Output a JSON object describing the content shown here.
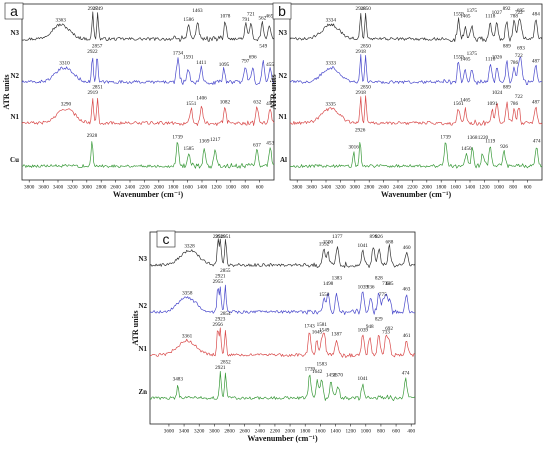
{
  "chart_data": [
    {
      "type": "line",
      "panel": "a",
      "xlabel": "Wavenumber (cm⁻¹)",
      "ylabel": "ATR units",
      "xlim": [
        3900,
        400
      ],
      "x_ticks": [
        "3800",
        "3600",
        "3400",
        "3200",
        "3000",
        "2800",
        "2600",
        "2400",
        "2200",
        "2000",
        "1800",
        "1600",
        "1400",
        "1200",
        "1000",
        "800",
        "600"
      ],
      "series": [
        {
          "name": "N3",
          "color": "#333333",
          "peaks": [
            {
              "x": 3363,
              "label": "3363"
            },
            {
              "x": 2917,
              "label": "2917"
            },
            {
              "x": 2849,
              "label": "2849"
            },
            {
              "x": 1586,
              "label": "1586"
            },
            {
              "x": 1463,
              "label": "1463"
            },
            {
              "x": 1078,
              "label": "1078"
            },
            {
              "x": 791,
              "label": "791"
            },
            {
              "x": 721,
              "label": "721"
            },
            {
              "x": 562,
              "label": "562"
            },
            {
              "x": 465,
              "label": "465"
            }
          ]
        },
        {
          "name": "N2",
          "color": "#4a4acc",
          "peaks": [
            {
              "x": 3310,
              "label": "3310"
            },
            {
              "x": 2922,
              "label": "2922"
            },
            {
              "x": 2857,
              "label": "2857"
            },
            {
              "x": 1734,
              "label": "1734"
            },
            {
              "x": 1591,
              "label": "1591"
            },
            {
              "x": 1411,
              "label": "1411"
            },
            {
              "x": 1095,
              "label": "1095"
            },
            {
              "x": 797,
              "label": "797"
            },
            {
              "x": 696,
              "label": "696"
            },
            {
              "x": 549,
              "label": "549"
            },
            {
              "x": 455,
              "label": "455"
            }
          ]
        },
        {
          "name": "N1",
          "color": "#d94a4a",
          "peaks": [
            {
              "x": 3290,
              "label": "3290"
            },
            {
              "x": 2919,
              "label": "2919"
            },
            {
              "x": 2851,
              "label": "2851"
            },
            {
              "x": 1551,
              "label": "1551"
            },
            {
              "x": 1406,
              "label": "1406"
            },
            {
              "x": 1082,
              "label": "1082"
            },
            {
              "x": 632,
              "label": "632"
            },
            {
              "x": 456,
              "label": "456"
            }
          ]
        },
        {
          "name": "Cu",
          "color": "#3a9a3a",
          "peaks": [
            {
              "x": 2928,
              "label": "2928"
            },
            {
              "x": 1739,
              "label": "1739"
            },
            {
              "x": 1585,
              "label": "1585"
            },
            {
              "x": 1369,
              "label": "1369"
            },
            {
              "x": 1217,
              "label": "1217"
            },
            {
              "x": 637,
              "label": "637"
            },
            {
              "x": 453,
              "label": "453"
            }
          ]
        }
      ]
    },
    {
      "type": "line",
      "panel": "b",
      "xlabel": "Wavenumber (cm⁻¹)",
      "ylabel": "ATR units",
      "xlim": [
        3900,
        400
      ],
      "x_ticks": [
        "3800",
        "3600",
        "3400",
        "3200",
        "3000",
        "2800",
        "2600",
        "2400",
        "2200",
        "2000",
        "1800",
        "1600",
        "1400",
        "1200",
        "1000",
        "800",
        "600"
      ],
      "series": [
        {
          "name": "N3",
          "color": "#333333",
          "peaks": [
            {
              "x": 3334,
              "label": "3334"
            },
            {
              "x": 2918,
              "label": "2918"
            },
            {
              "x": 2850,
              "label": "2850"
            },
            {
              "x": 1559,
              "label": "1559"
            },
            {
              "x": 1465,
              "label": "1465"
            },
            {
              "x": 1375,
              "label": "1375"
            },
            {
              "x": 1118,
              "label": "1118"
            },
            {
              "x": 1027,
              "label": "1027"
            },
            {
              "x": 892,
              "label": "892"
            },
            {
              "x": 788,
              "label": "788"
            },
            {
              "x": 722,
              "label": "722"
            },
            {
              "x": 695,
              "label": "695"
            },
            {
              "x": 484,
              "label": "484"
            }
          ]
        },
        {
          "name": "N2",
          "color": "#4a4acc",
          "peaks": [
            {
              "x": 3333,
              "label": "3333"
            },
            {
              "x": 2918,
              "label": "2918"
            },
            {
              "x": 2850,
              "label": "2850"
            },
            {
              "x": 1559,
              "label": "1559"
            },
            {
              "x": 1465,
              "label": "1465"
            },
            {
              "x": 1375,
              "label": "1375"
            },
            {
              "x": 1118,
              "label": "1118"
            },
            {
              "x": 1026,
              "label": "1026"
            },
            {
              "x": 889,
              "label": "889"
            },
            {
              "x": 786,
              "label": "786"
            },
            {
              "x": 722,
              "label": "722"
            },
            {
              "x": 693,
              "label": "693"
            },
            {
              "x": 487,
              "label": "487"
            }
          ]
        },
        {
          "name": "N1",
          "color": "#d94a4a",
          "peaks": [
            {
              "x": 3335,
              "label": "3335"
            },
            {
              "x": 2918,
              "label": "2918"
            },
            {
              "x": 2850,
              "label": "2850"
            },
            {
              "x": 1561,
              "label": "1561"
            },
            {
              "x": 1465,
              "label": "1465"
            },
            {
              "x": 1091,
              "label": "1091"
            },
            {
              "x": 1024,
              "label": "1024"
            },
            {
              "x": 889,
              "label": "889"
            },
            {
              "x": 786,
              "label": "786"
            },
            {
              "x": 722,
              "label": "722"
            },
            {
              "x": 487,
              "label": "487"
            }
          ]
        },
        {
          "name": "Al",
          "color": "#3a9a3a",
          "peaks": [
            {
              "x": 3016,
              "label": "3016"
            },
            {
              "x": 2926,
              "label": "2926"
            },
            {
              "x": 1739,
              "label": "1739"
            },
            {
              "x": 1450,
              "label": "1450"
            },
            {
              "x": 1368,
              "label": "1368"
            },
            {
              "x": 1220,
              "label": "1220"
            },
            {
              "x": 1119,
              "label": "1119"
            },
            {
              "x": 926,
              "label": "926"
            },
            {
              "x": 474,
              "label": "474"
            }
          ]
        }
      ]
    },
    {
      "type": "line",
      "panel": "c",
      "xlabel": "Wavenumber (cm⁻¹)",
      "ylabel": "ATR units",
      "xlim": [
        3850,
        350
      ],
      "x_ticks": [
        "3600",
        "3400",
        "3200",
        "3000",
        "2800",
        "2600",
        "2400",
        "2200",
        "2000",
        "1800",
        "1600",
        "1400",
        "1200",
        "1000",
        "800",
        "600",
        "400"
      ],
      "series": [
        {
          "name": "N3",
          "color": "#333333",
          "peaks": [
            {
              "x": 3328,
              "label": "3328"
            },
            {
              "x": 2951,
              "label": "2951"
            },
            {
              "x": 2919,
              "label": "2919"
            },
            {
              "x": 2851,
              "label": "2851"
            },
            {
              "x": 1552,
              "label": "1552"
            },
            {
              "x": 1500,
              "label": "1500"
            },
            {
              "x": 1377,
              "label": "1377"
            },
            {
              "x": 1041,
              "label": "1041"
            },
            {
              "x": 899,
              "label": "899"
            },
            {
              "x": 826,
              "label": "826"
            },
            {
              "x": 688,
              "label": "688"
            },
            {
              "x": 460,
              "label": "460"
            }
          ]
        },
        {
          "name": "N2",
          "color": "#4a4acc",
          "peaks": [
            {
              "x": 3358,
              "label": "3358"
            },
            {
              "x": 2955,
              "label": "2955"
            },
            {
              "x": 2921,
              "label": "2921"
            },
            {
              "x": 2855,
              "label": "2855"
            },
            {
              "x": 1550,
              "label": "1550"
            },
            {
              "x": 1498,
              "label": "1498"
            },
            {
              "x": 1383,
              "label": "1383"
            },
            {
              "x": 1039,
              "label": "1039"
            },
            {
              "x": 936,
              "label": "936"
            },
            {
              "x": 828,
              "label": "828"
            },
            {
              "x": 775,
              "label": "775"
            },
            {
              "x": 733,
              "label": "733"
            },
            {
              "x": 685,
              "label": "685"
            },
            {
              "x": 463,
              "label": "463"
            }
          ]
        },
        {
          "name": "N1",
          "color": "#d94a4a",
          "peaks": [
            {
              "x": 3361,
              "label": "3361"
            },
            {
              "x": 2956,
              "label": "2956"
            },
            {
              "x": 2923,
              "label": "2923"
            },
            {
              "x": 2854,
              "label": "2854"
            },
            {
              "x": 1743,
              "label": "1743"
            },
            {
              "x": 1645,
              "label": "1645"
            },
            {
              "x": 1581,
              "label": "1581"
            },
            {
              "x": 1549,
              "label": "1549"
            },
            {
              "x": 1387,
              "label": "1387"
            },
            {
              "x": 1039,
              "label": "1039"
            },
            {
              "x": 948,
              "label": "948"
            },
            {
              "x": 829,
              "label": "829"
            },
            {
              "x": 733,
              "label": "733"
            },
            {
              "x": 692,
              "label": "692"
            },
            {
              "x": 461,
              "label": "461"
            }
          ]
        },
        {
          "name": "Zn",
          "color": "#3a9a3a",
          "peaks": [
            {
              "x": 3483,
              "label": "3483"
            },
            {
              "x": 2921,
              "label": "2921"
            },
            {
              "x": 2852,
              "label": "2852"
            },
            {
              "x": 1739,
              "label": "1739"
            },
            {
              "x": 1642,
              "label": "1642"
            },
            {
              "x": 1583,
              "label": "1583"
            },
            {
              "x": 1458,
              "label": "1458"
            },
            {
              "x": 1370,
              "label": "1370"
            },
            {
              "x": 1041,
              "label": "1041"
            },
            {
              "x": 474,
              "label": "474"
            }
          ]
        }
      ]
    }
  ]
}
